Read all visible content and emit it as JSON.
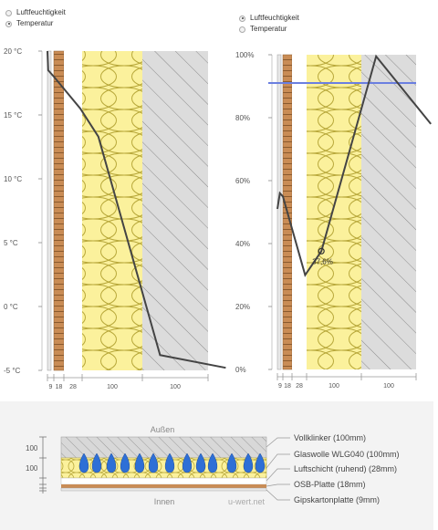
{
  "left_panel": {
    "options": [
      {
        "label": "Luftfeuchtigkeit",
        "checked": false
      },
      {
        "label": "Temperatur",
        "checked": true
      }
    ]
  },
  "right_panel": {
    "options": [
      {
        "label": "Luftfeuchtigkeit",
        "checked": true
      },
      {
        "label": "Temperatur",
        "checked": false
      }
    ]
  },
  "chart_data": [
    {
      "type": "line",
      "title": "",
      "ylabel": "",
      "y_ticks": [
        "20 °C",
        "15 °C",
        "10 °C",
        "5 °C",
        "0 °C",
        "-5 °C"
      ],
      "ylim": [
        -5,
        20
      ],
      "x_layer_labels": [
        "9",
        "18",
        "28",
        "100",
        "100"
      ],
      "series": [
        {
          "x": [
            0,
            1,
            9,
            27,
            55,
            155,
            255
          ],
          "y": [
            20,
            18.5,
            18.0,
            15.5,
            13.3,
            -3.8,
            -4.8
          ]
        }
      ]
    },
    {
      "type": "line",
      "title": "",
      "ylabel": "",
      "y_ticks": [
        "100%",
        "80%",
        "60%",
        "40%",
        "20%",
        "0%"
      ],
      "ylim": [
        0,
        100
      ],
      "x_layer_labels": [
        "9",
        "18",
        "28",
        "100",
        "100"
      ],
      "reference_line": 100,
      "marker": {
        "x": 55,
        "y": 37.6,
        "label": "37,6%"
      },
      "series": [
        {
          "x": [
            0,
            4,
            9,
            27,
            55,
            155,
            255
          ],
          "y": [
            51,
            56,
            55,
            30,
            37.6,
            99.5,
            78
          ]
        }
      ]
    }
  ],
  "legend": {
    "outside_label": "Außen",
    "inside_label": "Innen",
    "watermark": "u-wert.net",
    "thickness_labels": [
      "100",
      "100"
    ],
    "layers": [
      "Vollklinker (100mm)",
      "Glaswolle WLG040 (100mm)",
      "Luftschicht (ruhend) (28mm)",
      "OSB-Platte (18mm)",
      "Gipskartonplatte (9mm)"
    ]
  }
}
